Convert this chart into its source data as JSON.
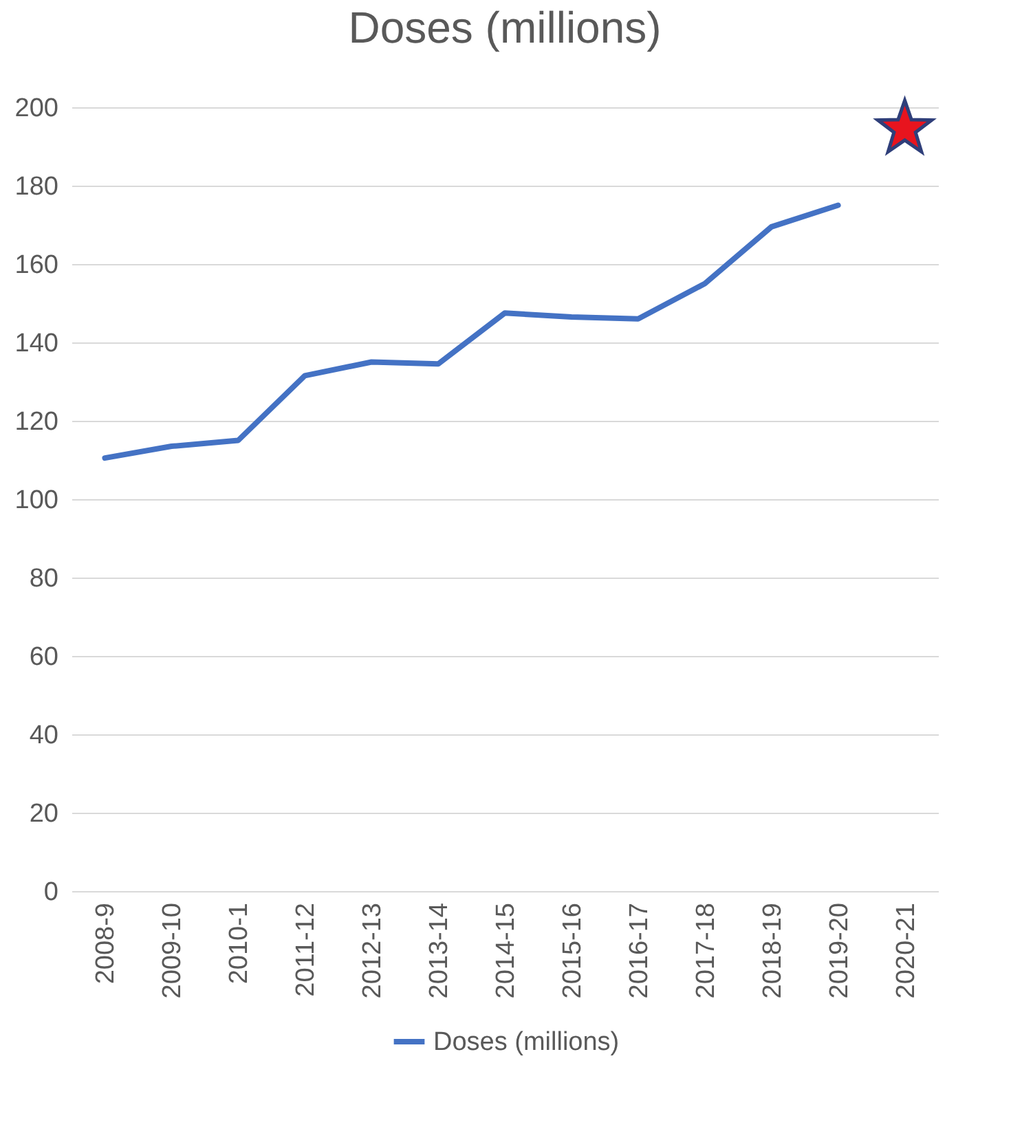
{
  "chart_data": {
    "type": "line",
    "title": "Doses (millions)",
    "categories": [
      "2008-9",
      "2009-10",
      "2010-1",
      "2011-12",
      "2012-13",
      "2013-14",
      "2014-15",
      "2015-16",
      "2016-17",
      "2017-18",
      "2018-19",
      "2019-20",
      "2020-21"
    ],
    "series": [
      {
        "name": "Doses (millions)",
        "color": "#4472c4",
        "values": [
          110.5,
          113.5,
          115,
          131.5,
          135,
          134.5,
          147.5,
          146.5,
          146,
          155,
          169.5,
          175,
          null
        ]
      },
      {
        "type": "scatter",
        "marker": "star",
        "color": "#e8141e",
        "values": [
          null,
          null,
          null,
          null,
          null,
          null,
          null,
          null,
          null,
          null,
          null,
          null,
          194.5
        ]
      }
    ],
    "ylim": [
      0,
      200
    ],
    "yticks": [
      0,
      20,
      40,
      60,
      80,
      100,
      120,
      140,
      160,
      180,
      200
    ],
    "grid": "y",
    "legend": "bottom",
    "marker": "none",
    "line_style": "solid"
  }
}
